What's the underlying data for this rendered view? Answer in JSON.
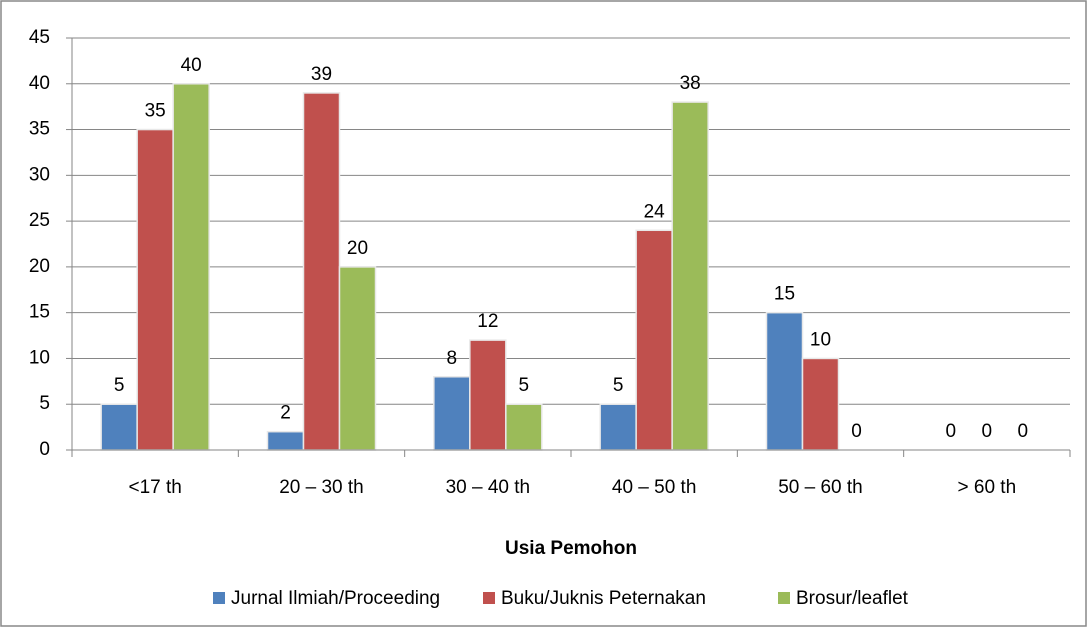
{
  "chart_data": {
    "type": "bar",
    "categories": [
      "<17 th",
      "20 – 30 th",
      "30 – 40 th",
      "40 – 50 th",
      "50 – 60 th",
      "> 60 th"
    ],
    "series": [
      {
        "name": "Jurnal Ilmiah/Proceeding",
        "color": "#4f81bd",
        "values": [
          5,
          2,
          8,
          5,
          15,
          0
        ]
      },
      {
        "name": "Buku/Juknis Peternakan",
        "color": "#c0504d",
        "values": [
          35,
          39,
          12,
          24,
          10,
          0
        ]
      },
      {
        "name": "Brosur/leaflet",
        "color": "#9bbb59",
        "values": [
          40,
          20,
          5,
          38,
          0,
          0
        ]
      }
    ],
    "xlabel": "Usia Pemohon",
    "ylim": [
      0,
      45
    ],
    "yticks": [
      0,
      5,
      10,
      15,
      20,
      25,
      30,
      35,
      40,
      45
    ],
    "grid": true,
    "legend": "bottom"
  }
}
